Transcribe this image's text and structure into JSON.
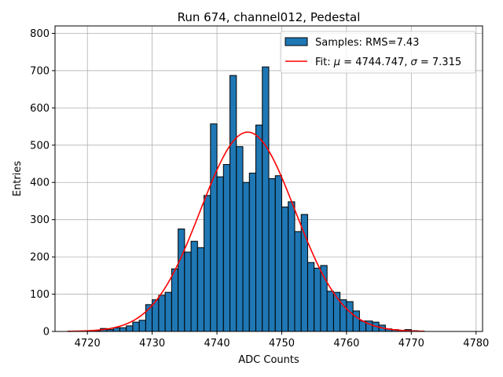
{
  "chart_data": {
    "type": "bar",
    "title": "Run 674, channel012, Pedestal",
    "xlabel": "ADC Counts",
    "ylabel": "Entries",
    "xlim": [
      4715,
      4781
    ],
    "ylim": [
      0,
      820
    ],
    "xticks": [
      4720,
      4730,
      4740,
      4750,
      4760,
      4770,
      4780
    ],
    "yticks": [
      0,
      100,
      200,
      300,
      400,
      500,
      600,
      700,
      800
    ],
    "grid": true,
    "legend_position": "top-right",
    "bin_width": 1,
    "histogram": {
      "name": "Samples: RMS=7.43",
      "color": "#1f77b4",
      "edgecolor": "#000000",
      "bins_left": [
        4717,
        4718,
        4719,
        4720,
        4721,
        4722,
        4723,
        4724,
        4725,
        4726,
        4727,
        4728,
        4729,
        4730,
        4731,
        4732,
        4733,
        4734,
        4735,
        4736,
        4737,
        4738,
        4739,
        4740,
        4741,
        4742,
        4743,
        4744,
        4745,
        4746,
        4747,
        4748,
        4749,
        4750,
        4751,
        4752,
        4753,
        4754,
        4755,
        4756,
        4757,
        4758,
        4759,
        4760,
        4761,
        4762,
        4763,
        4764,
        4765,
        4766,
        4767,
        4768,
        4769,
        4770,
        4771
      ],
      "counts": [
        1,
        1,
        1,
        1,
        2,
        8,
        5,
        10,
        10,
        15,
        25,
        30,
        72,
        85,
        97,
        105,
        168,
        275,
        213,
        242,
        225,
        365,
        557,
        415,
        448,
        687,
        496,
        400,
        425,
        554,
        710,
        410,
        418,
        334,
        348,
        268,
        314,
        185,
        170,
        177,
        108,
        105,
        85,
        80,
        55,
        28,
        28,
        25,
        17,
        7,
        5,
        3,
        5,
        2,
        1
      ]
    },
    "fit": {
      "name": "Fit: μ = 4744.747, σ = 7.315",
      "color": "#ff0000",
      "mu": 4744.747,
      "sigma": 7.315,
      "peak": 535,
      "x_range": [
        4717,
        4772
      ]
    }
  },
  "legend": {
    "hist_label_prefix": "Samples: RMS=",
    "hist_rms": "7.43",
    "fit_label_prefix": "Fit: ",
    "mu_symbol": "μ",
    "fit_mu_text": " = 4744.747, ",
    "sigma_symbol": "σ",
    "fit_sigma_text": " = 7.315"
  }
}
